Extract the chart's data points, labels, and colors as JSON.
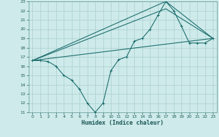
{
  "title": "",
  "xlabel": "Humidex (Indice chaleur)",
  "bg_color": "#ceeaea",
  "grid_color": "#aacece",
  "line_color": "#1a6b6b",
  "xlim": [
    -0.5,
    23.5
  ],
  "ylim": [
    11,
    23
  ],
  "xticks": [
    0,
    1,
    2,
    3,
    4,
    5,
    6,
    7,
    8,
    9,
    10,
    11,
    12,
    13,
    14,
    15,
    16,
    17,
    18,
    19,
    20,
    21,
    22,
    23
  ],
  "yticks": [
    11,
    12,
    13,
    14,
    15,
    16,
    17,
    18,
    19,
    20,
    21,
    22,
    23
  ],
  "line1_x": [
    0,
    1,
    2,
    3,
    4,
    5,
    6,
    7,
    8,
    9,
    10,
    11,
    12,
    13,
    14,
    15,
    16,
    17,
    18,
    19,
    20,
    21,
    22,
    23
  ],
  "line1_y": [
    16.6,
    16.6,
    16.5,
    16.0,
    15.0,
    14.5,
    13.5,
    12.0,
    11.0,
    12.0,
    15.5,
    16.7,
    17.0,
    18.7,
    19.0,
    20.0,
    21.5,
    23.0,
    22.0,
    20.3,
    18.5,
    18.5,
    18.5,
    19.0
  ],
  "line2_x": [
    0,
    23
  ],
  "line2_y": [
    16.6,
    19.0
  ],
  "line3_x": [
    0,
    17,
    23
  ],
  "line3_y": [
    16.6,
    23.0,
    19.0
  ],
  "line4_x": [
    0,
    17,
    23
  ],
  "line4_y": [
    16.6,
    22.2,
    19.0
  ],
  "tick_fontsize": 4.5,
  "xlabel_fontsize": 6.0,
  "linewidth": 0.8,
  "marker_size": 2.5,
  "marker_ew": 0.7
}
